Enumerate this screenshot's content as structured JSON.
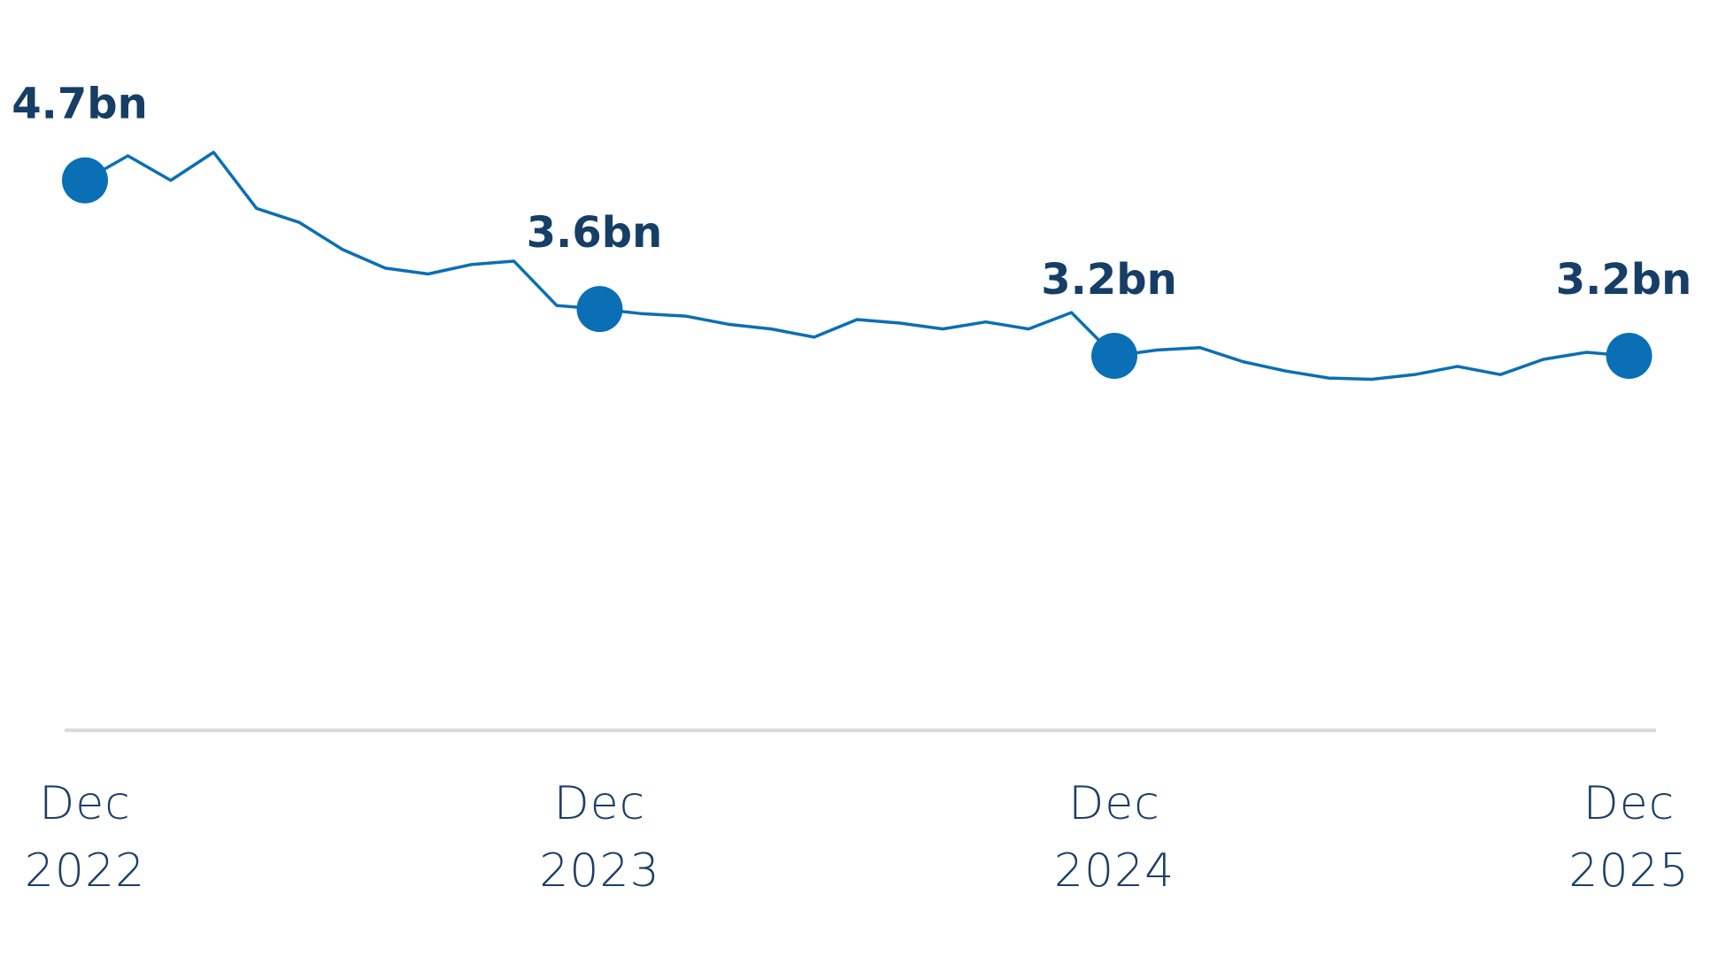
{
  "chart_data": {
    "type": "line",
    "categories": [
      "Dec 2022",
      null,
      null,
      null,
      null,
      null,
      null,
      null,
      null,
      null,
      null,
      null,
      "Dec 2023",
      null,
      null,
      null,
      null,
      null,
      null,
      null,
      null,
      null,
      null,
      null,
      "Dec 2024",
      null,
      null,
      null,
      null,
      null,
      null,
      null,
      null,
      null,
      null,
      null,
      "Dec 2025"
    ],
    "series": [
      {
        "color": "#0a6fb5",
        "values": [
          4.7,
          4.91,
          4.7,
          4.94,
          4.46,
          4.34,
          4.11,
          3.95,
          3.9,
          3.98,
          4.01,
          3.63,
          3.6,
          3.56,
          3.54,
          3.47,
          3.43,
          3.36,
          3.51,
          3.48,
          3.43,
          3.49,
          3.43,
          3.57,
          3.2,
          3.25,
          3.27,
          3.15,
          3.07,
          3.01,
          3.0,
          3.04,
          3.11,
          3.04,
          3.17,
          3.23,
          3.2
        ],
        "value_labels": [
          "4.7bn",
          null,
          null,
          null,
          null,
          null,
          null,
          null,
          null,
          null,
          null,
          null,
          "3.6bn",
          null,
          null,
          null,
          null,
          null,
          null,
          null,
          null,
          null,
          null,
          null,
          "3.2bn",
          null,
          null,
          null,
          null,
          null,
          null,
          null,
          null,
          null,
          null,
          null,
          "3.2bn"
        ]
      }
    ],
    "ylim": [
      0,
      5.5
    ]
  }
}
